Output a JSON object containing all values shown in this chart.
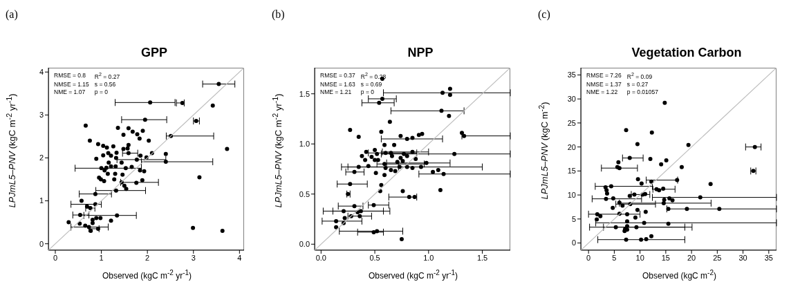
{
  "chart_data": [
    {
      "type": "scatter",
      "title": "GPP",
      "xlabel": "Observed (kgC m$^{-2}$ yr$^{-1}$)",
      "ylabel": "LPJmL5–PNV (kgC m$^{-2}$ yr$^{-1}$)",
      "xlim": [
        -0.15,
        4.1
      ],
      "ylim": [
        -0.15,
        4.1
      ],
      "xticks": [
        0,
        1,
        2,
        3,
        4
      ],
      "yticks": [
        0,
        1,
        2,
        3,
        4
      ],
      "marker": "circle",
      "annotations": [
        "(a)",
        "RMSE = 0.8",
        "R$^{2}$ = 0.27",
        "NMSE = 1.15",
        "s = 0.56",
        "NME = 1.07",
        "p = 0"
      ],
      "series": [
        {
          "color": "#000000",
          "x": [
            3.55,
            2.06,
            2.76,
            3.42,
            1.95,
            3.06,
            0.66,
            1.36,
            1.59,
            1.68,
            1.78,
            1.9,
            1.48,
            1.83,
            2.51,
            0.75,
            2.03,
            0.93,
            1.04,
            1.12,
            1.26,
            1.59,
            1.48,
            1.57,
            3.73,
            1.33,
            1.59,
            2.1,
            2.4,
            1.15,
            1.04,
            1.21,
            1.85,
            0.89,
            1.32,
            1.77,
            1.98,
            2.4,
            1.44,
            1.16,
            1.0,
            1.11,
            1.21,
            1.31,
            1.53,
            1.66,
            1.07,
            1.84,
            1.93,
            1.14,
            1.3,
            1.46,
            0.95,
            0.99,
            1.06,
            1.28,
            3.13,
            1.44,
            1.76,
            1.89,
            1.5,
            1.54,
            1.32,
            0.87,
            0.57,
            0.87,
            0.69,
            0.76,
            0.54,
            1.34,
            0.89,
            0.98,
            0.81,
            1.21,
            0.29,
            0.53,
            0.81,
            0.65,
            0.73,
            0.93,
            0.77,
            2.99,
            3.63
          ],
          "values": [
            3.72,
            3.29,
            3.28,
            3.22,
            2.89,
            2.86,
            2.75,
            2.7,
            2.69,
            2.61,
            2.55,
            2.63,
            2.54,
            2.45,
            2.51,
            2.4,
            2.4,
            2.32,
            2.28,
            2.24,
            2.27,
            2.3,
            2.21,
            2.22,
            2.21,
            2.12,
            2.11,
            2.11,
            2.09,
            2.11,
            2.06,
            2.05,
            2.05,
            1.98,
            2.0,
            1.96,
            2.01,
            1.91,
            1.89,
            1.89,
            1.76,
            1.77,
            1.8,
            1.8,
            1.76,
            1.79,
            1.71,
            1.71,
            1.69,
            1.63,
            1.63,
            1.61,
            1.54,
            1.5,
            1.46,
            1.5,
            1.55,
            1.43,
            1.42,
            1.48,
            1.35,
            1.28,
            1.24,
            1.16,
            1.0,
            0.92,
            0.87,
            0.83,
            0.67,
            0.66,
            0.6,
            0.6,
            0.56,
            0.54,
            0.5,
            0.47,
            0.48,
            0.42,
            0.39,
            0.35,
            0.3,
            0.37,
            0.3
          ],
          "xerrors": [
            [
              3.2,
              3.9
            ],
            [
              1.3,
              2.6
            ],
            [
              2.63,
              2.8
            ],
            null,
            [
              1.44,
              2.42
            ],
            [
              3.0,
              3.13
            ],
            null,
            null,
            null,
            null,
            null,
            null,
            null,
            null,
            [
              2.41,
              3.44
            ],
            null,
            null,
            null,
            null,
            null,
            null,
            null,
            null,
            null,
            null,
            null,
            [
              1.46,
              1.79
            ],
            null,
            null,
            null,
            null,
            null,
            null,
            null,
            null,
            [
              1.34,
              2.4
            ],
            null,
            [
              1.87,
              3.42
            ],
            null,
            null,
            [
              0.43,
              1.87
            ],
            null,
            null,
            null,
            null,
            null,
            null,
            null,
            null,
            null,
            null,
            null,
            null,
            null,
            null,
            null,
            null,
            [
              1.42,
              2.24
            ],
            null,
            null,
            null,
            null,
            [
              0.88,
              1.96
            ],
            [
              0.52,
              1.22
            ],
            null,
            [
              0.34,
              1.0
            ],
            null,
            [
              0.66,
              0.86
            ],
            [
              0.38,
              0.73
            ],
            [
              0.62,
              1.76
            ],
            null,
            null,
            null,
            null,
            null,
            null,
            null,
            null,
            [
              0.34,
              1.15
            ],
            [
              0.73,
              0.95
            ],
            null,
            null,
            null
          ]
        },
        {
          "type": "line",
          "marker": "none",
          "color": "#bebebe",
          "x": [
            -0.15,
            4.1
          ],
          "values": [
            -0.15,
            4.1
          ]
        }
      ]
    },
    {
      "type": "scatter",
      "title": "NPP",
      "xlabel": "Observed (kgC m$^{-2}$ yr$^{-1}$)",
      "ylabel": "LPJmL5–PNV (kgC m$^{-2}$ yr$^{-1}$)",
      "xlim": [
        -0.06,
        1.76
      ],
      "ylim": [
        -0.06,
        1.76
      ],
      "xticks": [
        {
          "value": 0,
          "label": "0.0"
        },
        0.5,
        {
          "value": 1,
          "label": "1.0"
        },
        1.5
      ],
      "yticks": [
        {
          "value": 0,
          "label": "0.0"
        },
        0.5,
        {
          "value": 1,
          "label": "1.0"
        },
        1.5
      ],
      "marker": "circle",
      "annotations": [
        "(b)",
        "RMSE = 0.37",
        "R$^{2}$ = 0.28",
        "NMSE = 1.63",
        "s = 0.69",
        "NME = 1.21",
        "p = 0"
      ],
      "series": [
        {
          "color": "#000000",
          "x": [
            0.57,
            1.2,
            1.13,
            1.2,
            0.57,
            0.54,
            1.12,
            1.19,
            0.64,
            0.27,
            0.35,
            0.56,
            0.74,
            0.8,
            0.85,
            0.91,
            0.94,
            1.31,
            1.33,
            0.59,
            0.68,
            0.5,
            0.42,
            0.38,
            0.6,
            0.65,
            0.52,
            0.66,
            0.77,
            0.85,
            1.24,
            0.41,
            0.47,
            0.5,
            0.53,
            0.74,
            0.76,
            0.8,
            0.88,
            0.59,
            0.71,
            0.98,
            0.44,
            0.35,
            0.6,
            0.73,
            0.8,
            0.85,
            0.93,
            0.65,
            0.69,
            1.04,
            1.09,
            1.14,
            0.31,
            0.51,
            0.59,
            0.27,
            0.56,
            0.25,
            0.55,
            0.76,
            1.11,
            0.82,
            0.87,
            0.31,
            0.49,
            0.21,
            0.37,
            0.34,
            0.28,
            0.36,
            0.22,
            0.14,
            0.21,
            0.14,
            0.49,
            0.52,
            0.75
          ],
          "values": [
            1.65,
            1.55,
            1.51,
            1.49,
            1.45,
            1.41,
            1.33,
            1.28,
            1.22,
            1.14,
            1.07,
            1.12,
            1.08,
            1.05,
            1.06,
            1.09,
            1.1,
            1.11,
            1.08,
            0.99,
            0.99,
            0.94,
            0.92,
            0.88,
            0.91,
            0.91,
            0.9,
            0.88,
            0.9,
            0.92,
            0.9,
            0.84,
            0.87,
            0.84,
            0.84,
            0.86,
            0.83,
            0.88,
            0.85,
            0.8,
            0.82,
            0.81,
            0.78,
            0.77,
            0.76,
            0.77,
            0.77,
            0.76,
            0.77,
            0.74,
            0.73,
            0.72,
            0.74,
            0.7,
            0.72,
            0.71,
            0.69,
            0.6,
            0.59,
            0.5,
            0.53,
            0.53,
            0.54,
            0.47,
            0.47,
            0.38,
            0.39,
            0.33,
            0.33,
            0.32,
            0.28,
            0.28,
            0.26,
            0.23,
            0.21,
            0.17,
            0.12,
            0.13,
            0.05
          ],
          "xerrors": [
            null,
            null,
            [
              0.58,
              1.76
            ],
            null,
            [
              0.44,
              0.7
            ],
            [
              0.38,
              0.68
            ],
            [
              0.65,
              1.33
            ],
            null,
            null,
            null,
            null,
            null,
            null,
            [
              0.56,
              1.13
            ],
            null,
            null,
            null,
            null,
            [
              1.31,
              1.76
            ],
            null,
            null,
            null,
            null,
            null,
            [
              0.44,
              0.89
            ],
            null,
            null,
            null,
            null,
            [
              0.57,
              1.0
            ],
            [
              0.56,
              1.76
            ],
            null,
            null,
            null,
            null,
            null,
            null,
            null,
            null,
            [
              0.52,
              0.96
            ],
            null,
            [
              0.61,
              1.2
            ],
            null,
            [
              0.19,
              0.72
            ],
            null,
            null,
            null,
            null,
            [
              0.25,
              1.5
            ],
            null,
            null,
            null,
            null,
            [
              0.91,
              1.76
            ],
            [
              0.23,
              0.4
            ],
            null,
            null,
            [
              0.15,
              0.43
            ],
            null,
            [
              0.24,
              0.27
            ],
            null,
            null,
            null,
            [
              0.63,
              0.89
            ],
            null,
            [
              0.16,
              0.39
            ],
            [
              0.44,
              0.63
            ],
            [
              0.02,
              0.58
            ],
            [
              0.11,
              0.64
            ],
            null,
            [
              0.25,
              0.47
            ],
            null,
            null,
            [
              0.01,
              0.38
            ],
            null,
            null,
            [
              0.34,
              0.58
            ],
            [
              0.17,
              0.76
            ],
            null
          ]
        },
        {
          "type": "line",
          "marker": "none",
          "color": "#bebebe",
          "x": [
            -0.06,
            1.76
          ],
          "values": [
            -0.06,
            1.76
          ]
        }
      ]
    },
    {
      "type": "scatter",
      "title": "Vegetation Carbon",
      "xlabel": "Observed (kgC m$^{-2}$)",
      "ylabel": "LPJmL5–PNV (kgC m$^{-2}$)",
      "xlim": [
        -1.5,
        36.5
      ],
      "ylim": [
        -1.5,
        36.5
      ],
      "xticks": [
        0,
        5,
        10,
        15,
        20,
        25,
        30,
        35
      ],
      "yticks": [
        0,
        5,
        10,
        15,
        20,
        25,
        30,
        35
      ],
      "marker": "circle",
      "annotations": [
        "(c)",
        "RMSE = 7.26",
        "R$^{2}$ = 0.09",
        "NMSE = 1.37",
        "s = 0.27",
        "NME = 1.22",
        "p = 0.01057"
      ],
      "series": [
        {
          "color": "#000000",
          "x": [
            14.8,
            7.3,
            12.3,
            9.5,
            19.4,
            8.0,
            12.0,
            5.8,
            15.1,
            14.1,
            18.1,
            5.6,
            6.0,
            9.6,
            10.3,
            12.2,
            17.2,
            23.7,
            4.4,
            3.3,
            3.5,
            3.6,
            13.2,
            13.7,
            14.5,
            8.9,
            10.5,
            11.0,
            4.8,
            3.4,
            8.0,
            14.7,
            15.7,
            16.3,
            21.7,
            6.0,
            6.6,
            8.1,
            14.6,
            4.7,
            9.5,
            11.1,
            15.5,
            19.1,
            25.4,
            6.0,
            7.5,
            1.7,
            2.3,
            1.6,
            7.5,
            9.1,
            10.8,
            15.5,
            5.3,
            7.5,
            9.3,
            7.1,
            7.0,
            7.5,
            7.3,
            10.2,
            11.2,
            12.2,
            32.3,
            32.0
          ],
          "values": [
            29.2,
            23.5,
            23.0,
            20.6,
            20.4,
            17.7,
            17.5,
            16.8,
            17.2,
            16.4,
            15.8,
            15.8,
            15.6,
            13.3,
            12.4,
            12.8,
            13.1,
            12.3,
            11.8,
            11.6,
            11.0,
            10.3,
            11.2,
            11.0,
            11.3,
            10.1,
            10.1,
            10.2,
            9.3,
            9.2,
            9.8,
            9.0,
            9.3,
            8.9,
            9.5,
            8.4,
            7.8,
            8.1,
            8.3,
            7.3,
            6.9,
            6.5,
            7.1,
            7.1,
            7.1,
            6.1,
            6.0,
            6.0,
            5.6,
            4.9,
            4.5,
            5.3,
            4.2,
            4.0,
            3.3,
            3.5,
            3.3,
            2.9,
            2.5,
            2.8,
            0.7,
            0.7,
            0.8,
            1.4,
            20.0,
            15.0
          ],
          "xerrors": [
            null,
            null,
            null,
            null,
            null,
            [
              6.6,
              10.6
            ],
            null,
            null,
            null,
            null,
            null,
            null,
            [
              2.5,
              9.5
            ],
            null,
            null,
            null,
            [
              11.2,
              17.3
            ],
            null,
            [
              1.3,
              12.4
            ],
            null,
            null,
            null,
            [
              12.5,
              16.8
            ],
            null,
            null,
            [
              8.3,
              11.9
            ],
            null,
            null,
            null,
            [
              0.7,
              10.3
            ],
            null,
            null,
            null,
            null,
            [
              12.4,
              36.5
            ],
            null,
            null,
            [
              5.3,
              13.0
            ],
            [
              6.0,
              23.8
            ],
            null,
            null,
            null,
            null,
            [
              15.2,
              36.5
            ],
            null,
            null,
            [
              0.0,
              10.0
            ],
            null,
            null,
            null,
            null,
            null,
            [
              1.4,
              36.5
            ],
            null,
            [
              0.2,
              20.1
            ],
            null,
            [
              2.9,
              18.7
            ],
            null,
            null,
            null,
            [
              1.8,
              18.7
            ],
            null,
            null,
            null,
            [
              30.5,
              33.5
            ],
            [
              31.5,
              32.5
            ]
          ]
        },
        {
          "type": "line",
          "marker": "none",
          "color": "#bebebe",
          "x": [
            -1.5,
            36.5
          ],
          "values": [
            -1.5,
            36.5
          ]
        }
      ]
    }
  ]
}
